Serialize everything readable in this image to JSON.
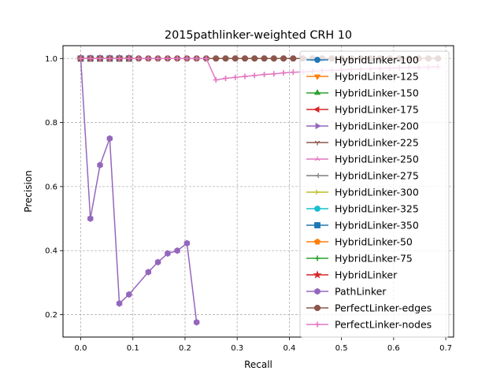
{
  "chart_data": {
    "type": "line",
    "title": "2015pathlinker-weighted CRH 10",
    "xlabel": "Recall",
    "ylabel": "Precision",
    "xlim": [
      -0.034,
      0.715
    ],
    "ylim": [
      0.13,
      1.04
    ],
    "xticks": [
      0.0,
      0.1,
      0.2,
      0.3,
      0.4,
      0.5,
      0.6,
      0.7
    ],
    "xtick_labels": [
      "0.0",
      "0.1",
      "0.2",
      "0.3",
      "0.4",
      "0.5",
      "0.6",
      "0.7"
    ],
    "yticks": [
      0.2,
      0.4,
      0.6,
      0.8,
      1.0
    ],
    "ytick_labels": [
      "0.2",
      "0.4",
      "0.6",
      "0.8",
      "1.0"
    ],
    "grid": true,
    "legend_position": "top-right",
    "series": [
      {
        "name": "HybridLinker-100",
        "color": "#1f77b4",
        "marker": "circle",
        "x": [
          0.0,
          0.0185,
          0.037,
          0.0556,
          0.0741,
          0.0926
        ],
        "y": [
          1.0,
          1.0,
          1.0,
          1.0,
          1.0,
          1.0
        ]
      },
      {
        "name": "HybridLinker-125",
        "color": "#ff7f0e",
        "marker": "triangle-down",
        "x": [
          0.0,
          0.0185,
          0.037,
          0.0556,
          0.0741,
          0.0926
        ],
        "y": [
          1.0,
          1.0,
          1.0,
          1.0,
          1.0,
          1.0
        ]
      },
      {
        "name": "HybridLinker-150",
        "color": "#2ca02c",
        "marker": "triangle-up",
        "x": [
          0.0,
          0.0185,
          0.037,
          0.0556,
          0.0741,
          0.0926
        ],
        "y": [
          1.0,
          1.0,
          1.0,
          1.0,
          1.0,
          1.0
        ]
      },
      {
        "name": "HybridLinker-175",
        "color": "#d62728",
        "marker": "triangle-left",
        "x": [
          0.0,
          0.0185,
          0.037,
          0.0556,
          0.0741,
          0.0926
        ],
        "y": [
          1.0,
          1.0,
          1.0,
          1.0,
          1.0,
          1.0
        ]
      },
      {
        "name": "HybridLinker-200",
        "color": "#9467bd",
        "marker": "triangle-right",
        "x": [
          0.0,
          0.0185,
          0.037,
          0.0556,
          0.0741,
          0.0926
        ],
        "y": [
          1.0,
          1.0,
          1.0,
          1.0,
          1.0,
          1.0
        ]
      },
      {
        "name": "HybridLinker-225",
        "color": "#8c564b",
        "marker": "tri-down",
        "x": [
          0.0,
          0.0185,
          0.037,
          0.0556,
          0.0741,
          0.0926
        ],
        "y": [
          1.0,
          1.0,
          1.0,
          1.0,
          1.0,
          1.0
        ]
      },
      {
        "name": "HybridLinker-250",
        "color": "#e377c2",
        "marker": "tri-up",
        "x": [
          0.0,
          0.0185,
          0.037,
          0.0556,
          0.0741,
          0.0926
        ],
        "y": [
          1.0,
          1.0,
          1.0,
          1.0,
          1.0,
          1.0
        ]
      },
      {
        "name": "HybridLinker-275",
        "color": "#7f7f7f",
        "marker": "tri-left",
        "x": [
          0.0,
          0.0185,
          0.037,
          0.0556,
          0.0741,
          0.0926
        ],
        "y": [
          1.0,
          1.0,
          1.0,
          1.0,
          1.0,
          1.0
        ]
      },
      {
        "name": "HybridLinker-300",
        "color": "#bcbd22",
        "marker": "tri-right",
        "x": [
          0.0,
          0.0185,
          0.037,
          0.0556,
          0.0741,
          0.0926
        ],
        "y": [
          1.0,
          1.0,
          1.0,
          1.0,
          1.0,
          1.0
        ]
      },
      {
        "name": "HybridLinker-325",
        "color": "#17becf",
        "marker": "circle",
        "x": [
          0.0,
          0.0185,
          0.037,
          0.0556,
          0.0741,
          0.0926
        ],
        "y": [
          1.0,
          1.0,
          1.0,
          1.0,
          1.0,
          1.0
        ]
      },
      {
        "name": "HybridLinker-350",
        "color": "#1f77b4",
        "marker": "square",
        "x": [
          0.0,
          0.0185,
          0.037,
          0.0556,
          0.0741,
          0.0926
        ],
        "y": [
          1.0,
          1.0,
          1.0,
          1.0,
          1.0,
          1.0
        ]
      },
      {
        "name": "HybridLinker-50",
        "color": "#ff7f0e",
        "marker": "pentagon",
        "x": [
          0.0,
          0.0185,
          0.037,
          0.0556,
          0.0741,
          0.0926
        ],
        "y": [
          1.0,
          1.0,
          1.0,
          1.0,
          1.0,
          1.0
        ]
      },
      {
        "name": "HybridLinker-75",
        "color": "#2ca02c",
        "marker": "plus",
        "x": [
          0.0,
          0.0185,
          0.037,
          0.0556,
          0.0741,
          0.0926
        ],
        "y": [
          1.0,
          1.0,
          1.0,
          1.0,
          1.0,
          1.0
        ]
      },
      {
        "name": "HybridLinker",
        "color": "#d62728",
        "marker": "star",
        "x": [
          0.0,
          0.0185,
          0.037,
          0.0556,
          0.0741,
          0.0926
        ],
        "y": [
          1.0,
          1.0,
          1.0,
          1.0,
          1.0,
          1.0
        ]
      },
      {
        "name": "PathLinker",
        "color": "#9467bd",
        "marker": "hexagon",
        "x": [
          0.0,
          0.0185,
          0.037,
          0.0556,
          0.0741,
          0.0926,
          0.1296,
          0.1481,
          0.1667,
          0.1852,
          0.2037,
          0.2222
        ],
        "y": [
          1.0,
          0.5,
          0.667,
          0.75,
          0.235,
          0.263,
          0.333,
          0.364,
          0.391,
          0.4,
          0.423,
          0.176
        ]
      },
      {
        "name": "PerfectLinker-edges",
        "color": "#8c564b",
        "marker": "octagon",
        "x": [
          0.0,
          0.0185,
          0.037,
          0.0556,
          0.0741,
          0.0926,
          0.1111,
          0.1296,
          0.1481,
          0.1667,
          0.1852,
          0.2037,
          0.2222,
          0.2407,
          0.2593,
          0.2778,
          0.2963,
          0.3148,
          0.3333,
          0.3519,
          0.3704,
          0.3889,
          0.4074,
          0.4259,
          0.4444,
          0.463,
          0.4815,
          0.5,
          0.5185,
          0.537,
          0.5556,
          0.5741,
          0.5926,
          0.6111,
          0.6296,
          0.6481,
          0.6667,
          0.6852
        ],
        "y": [
          1.0,
          1.0,
          1.0,
          1.0,
          1.0,
          1.0,
          1.0,
          1.0,
          1.0,
          1.0,
          1.0,
          1.0,
          1.0,
          1.0,
          1.0,
          1.0,
          1.0,
          1.0,
          1.0,
          1.0,
          1.0,
          1.0,
          1.0,
          1.0,
          1.0,
          1.0,
          1.0,
          1.0,
          1.0,
          1.0,
          1.0,
          1.0,
          1.0,
          1.0,
          1.0,
          1.0,
          1.0,
          1.0
        ]
      },
      {
        "name": "PerfectLinker-nodes",
        "color": "#e377c2",
        "marker": "plus",
        "x": [
          0.0,
          0.0185,
          0.037,
          0.0556,
          0.0741,
          0.0926,
          0.1111,
          0.1296,
          0.1481,
          0.1667,
          0.1852,
          0.2037,
          0.2222,
          0.2407,
          0.2593,
          0.2778,
          0.2963,
          0.3148,
          0.3333,
          0.3519,
          0.3704,
          0.3889,
          0.4074,
          0.4259,
          0.4444,
          0.463,
          0.4815,
          0.5,
          0.5185,
          0.537,
          0.5556,
          0.5741,
          0.5926,
          0.6111,
          0.6296,
          0.6481,
          0.6667,
          0.6852
        ],
        "y": [
          1.0,
          1.0,
          1.0,
          1.0,
          1.0,
          1.0,
          1.0,
          1.0,
          1.0,
          1.0,
          1.0,
          1.0,
          1.0,
          1.0,
          0.933,
          0.938,
          0.941,
          0.944,
          0.947,
          0.95,
          0.952,
          0.955,
          0.957,
          0.958,
          0.96,
          0.962,
          0.963,
          0.964,
          0.966,
          0.967,
          0.968,
          0.969,
          0.97,
          0.971,
          0.972,
          0.972,
          0.973,
          0.974
        ]
      }
    ]
  }
}
